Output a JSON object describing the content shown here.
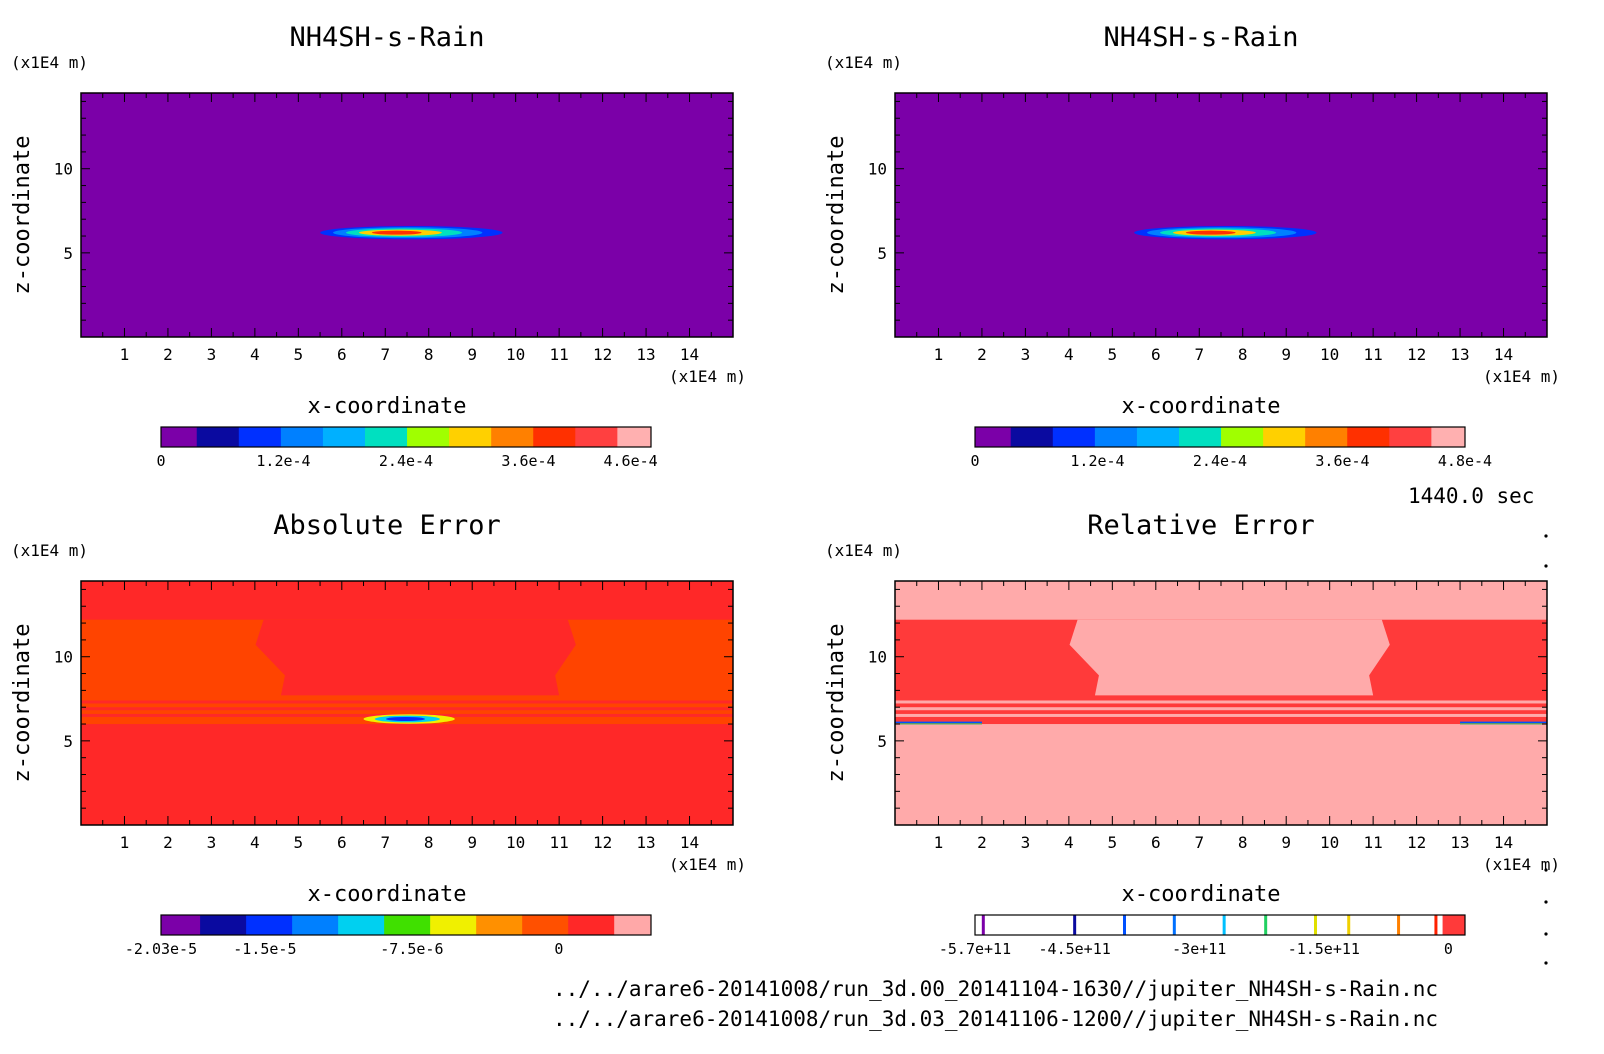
{
  "time_label": "1440.0 sec",
  "file_paths": [
    "../../arare6-20141008/run_3d.00_20141104-1630//jupiter_NH4SH-s-Rain.nc",
    "../../arare6-20141008/run_3d.03_20141106-1200//jupiter_NH4SH-s-Rain.nc"
  ],
  "chart_data": [
    {
      "type": "heatmap",
      "title": "NH4SH-s-Rain",
      "xlabel": "x-coordinate",
      "ylabel": "z-coordinate",
      "x_unit": "(x1E4 m)",
      "y_unit": "(x1E4 m)",
      "xlim": [
        0,
        15
      ],
      "ylim": [
        0,
        14.5
      ],
      "x_ticks": [
        1,
        2,
        3,
        4,
        5,
        6,
        7,
        8,
        9,
        10,
        11,
        12,
        13,
        14
      ],
      "y_ticks": [
        5,
        10
      ],
      "colorbar": {
        "colors": [
          "#7b00a8",
          "#0a0aa0",
          "#0030ff",
          "#0080ff",
          "#00b0ff",
          "#00e0c0",
          "#a0ff00",
          "#ffd000",
          "#ff8000",
          "#ff3000",
          "#ff4040",
          "#ffb0b0"
        ],
        "labels": [
          "0",
          "1.2e-4",
          "2.4e-4",
          "3.6e-4",
          "4.6e-4"
        ],
        "label_values": [
          0,
          0.00012,
          0.00024,
          0.00036,
          0.00046
        ],
        "range": [
          0,
          0.00048
        ]
      },
      "background": "#7b00a8",
      "features": [
        {
          "kind": "blob",
          "x_range": [
            5.5,
            9.7
          ],
          "z_center": 6.2,
          "z_half": 0.4,
          "colors": [
            "#0030ff",
            "#0080ff",
            "#00e0c0",
            "#ffd000",
            "#ff3000"
          ]
        }
      ]
    },
    {
      "type": "heatmap",
      "title": "NH4SH-s-Rain",
      "xlabel": "x-coordinate",
      "ylabel": "z-coordinate",
      "x_unit": "(x1E4 m)",
      "y_unit": "(x1E4 m)",
      "xlim": [
        0,
        15
      ],
      "ylim": [
        0,
        14.5
      ],
      "x_ticks": [
        1,
        2,
        3,
        4,
        5,
        6,
        7,
        8,
        9,
        10,
        11,
        12,
        13,
        14
      ],
      "y_ticks": [
        5,
        10
      ],
      "colorbar": {
        "colors": [
          "#7b00a8",
          "#0a0aa0",
          "#0030ff",
          "#0080ff",
          "#00b0ff",
          "#00e0c0",
          "#a0ff00",
          "#ffd000",
          "#ff8000",
          "#ff3000",
          "#ff4040",
          "#ffb0b0"
        ],
        "labels": [
          "0",
          "1.2e-4",
          "2.4e-4",
          "3.6e-4",
          "4.8e-4"
        ],
        "label_values": [
          0,
          0.00012,
          0.00024,
          0.00036,
          0.00048
        ],
        "range": [
          0,
          0.00048
        ]
      },
      "background": "#7b00a8",
      "features": [
        {
          "kind": "blob",
          "x_range": [
            5.5,
            9.7
          ],
          "z_center": 6.2,
          "z_half": 0.4,
          "colors": [
            "#0030ff",
            "#0080ff",
            "#00e0c0",
            "#ffd000",
            "#ff3000"
          ]
        }
      ]
    },
    {
      "type": "heatmap",
      "title": "Absolute Error",
      "xlabel": "x-coordinate",
      "ylabel": "z-coordinate",
      "x_unit": "(x1E4 m)",
      "y_unit": "(x1E4 m)",
      "xlim": [
        0,
        15
      ],
      "ylim": [
        0,
        14.5
      ],
      "x_ticks": [
        1,
        2,
        3,
        4,
        5,
        6,
        7,
        8,
        9,
        10,
        11,
        12,
        13,
        14
      ],
      "y_ticks": [
        5,
        10
      ],
      "colorbar": {
        "colors": [
          "#7b00a8",
          "#0a0aa0",
          "#0030ff",
          "#0080ff",
          "#00d0f0",
          "#40e000",
          "#f0f000",
          "#ff9000",
          "#ff5000",
          "#ff2828",
          "#ffa8a8"
        ],
        "labels": [
          "-2.03e-5",
          "-1.5e-5",
          "-7.5e-6",
          "0"
        ],
        "label_values": [
          -2.03e-05,
          -1.5e-05,
          -7.5e-06,
          0
        ],
        "range": [
          -2.03e-05,
          4.7e-06
        ]
      },
      "background": "#ff2828",
      "features": [
        {
          "kind": "band",
          "z_range": [
            6.0,
            12.2
          ],
          "color": "#ff4400"
        },
        {
          "kind": "trapezoid",
          "z_range": [
            7.7,
            12.2
          ],
          "x_top": [
            4.2,
            11.2
          ],
          "x_bottom": [
            4.6,
            11.0
          ],
          "color": "#ff2828"
        },
        {
          "kind": "stripes",
          "z": [
            6.6,
            7.0,
            7.4
          ],
          "color": "#ff2828"
        },
        {
          "kind": "blob",
          "x_range": [
            6.5,
            8.6
          ],
          "z_center": 6.3,
          "z_half": 0.28,
          "colors": [
            "#f0f000",
            "#00d0f0",
            "#0030ff"
          ]
        }
      ]
    },
    {
      "type": "heatmap",
      "title": "Relative Error",
      "xlabel": "x-coordinate",
      "ylabel": "z-coordinate",
      "x_unit": "(x1E4 m)",
      "y_unit": "(x1E4 m)",
      "xlim": [
        0,
        15
      ],
      "ylim": [
        0,
        14.5
      ],
      "x_ticks": [
        1,
        2,
        3,
        4,
        5,
        6,
        7,
        8,
        9,
        10,
        11,
        12,
        13,
        14
      ],
      "y_ticks": [
        5,
        10
      ],
      "colorbar": {
        "style": "lines",
        "line_colors": [
          "#7b00a8",
          "#0a0aa0",
          "#0050ff",
          "#0070ff",
          "#00c0ff",
          "#20d060",
          "#e0e000",
          "#f0d000",
          "#ff8000",
          "#ff2000"
        ],
        "line_values": [
          -560000000000,
          -450000000000,
          -390000000000,
          -330000000000,
          -270000000000,
          -220000000000,
          -160000000000,
          -120000000000,
          -60000000000,
          -15000000000
        ],
        "fill_color": "#ff3a3a",
        "fill_from": -7000000000,
        "labels": [
          "-5.7e+11",
          "-4.5e+11",
          "-3e+11",
          "-1.5e+11",
          "0"
        ],
        "label_values": [
          -570000000000,
          -450000000000,
          -300000000000,
          -150000000000,
          0
        ],
        "range": [
          -570000000000,
          20000000000
        ]
      },
      "background": "#ffaaaa",
      "features": [
        {
          "kind": "band",
          "z_range": [
            6.0,
            12.2
          ],
          "color": "#ff3a3a"
        },
        {
          "kind": "trapezoid",
          "z_range": [
            7.7,
            12.2
          ],
          "x_top": [
            4.2,
            11.2
          ],
          "x_bottom": [
            4.6,
            11.0
          ],
          "color": "#ffaaaa"
        },
        {
          "kind": "stripes",
          "z": [
            6.6,
            7.0,
            7.4
          ],
          "color": "#ffaaaa"
        },
        {
          "kind": "edge",
          "x_range": [
            0,
            2.0
          ],
          "z": 6.1
        },
        {
          "kind": "edge",
          "x_range": [
            13.0,
            15.0
          ],
          "z": 6.1
        }
      ]
    }
  ]
}
